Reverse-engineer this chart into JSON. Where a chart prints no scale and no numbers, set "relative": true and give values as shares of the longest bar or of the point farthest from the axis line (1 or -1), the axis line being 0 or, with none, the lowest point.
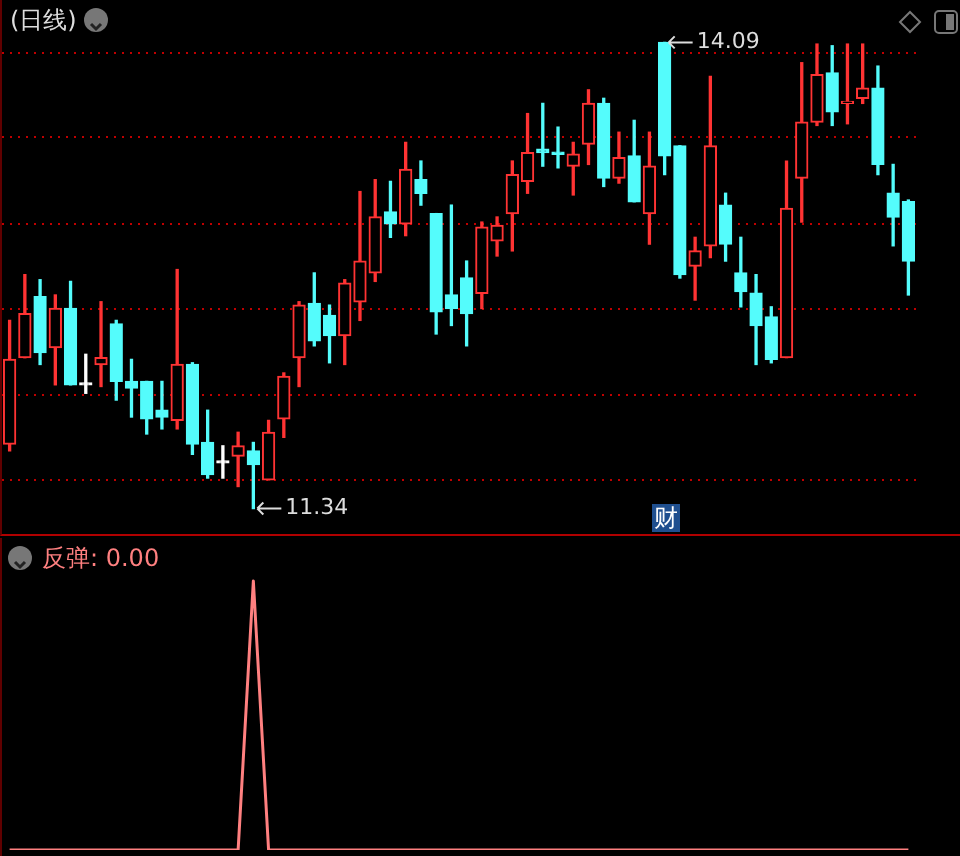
{
  "chart_data": [
    {
      "type": "candlestick",
      "title": "(日线)",
      "categories": [
        null,
        null,
        null,
        null,
        null,
        null,
        null,
        null,
        null,
        null,
        null,
        null,
        null,
        null,
        null,
        null,
        null,
        null,
        null,
        null,
        null,
        null,
        null,
        null,
        null,
        null,
        null,
        null,
        null,
        null,
        null,
        null,
        null,
        null,
        null,
        null,
        null,
        null,
        null,
        null,
        null,
        null,
        null,
        null,
        null,
        null,
        null,
        null,
        null,
        null,
        null,
        null,
        null,
        null,
        null,
        null,
        null,
        null,
        null,
        null
      ],
      "ohlc": [
        [
          11.72,
          12.45,
          11.68,
          12.22
        ],
        [
          12.23,
          12.72,
          12.23,
          12.49
        ],
        [
          12.59,
          12.69,
          12.19,
          12.26
        ],
        [
          12.29,
          12.6,
          12.07,
          12.52
        ],
        [
          12.52,
          12.68,
          12.07,
          12.07
        ],
        [
          12.07,
          12.25,
          12.02,
          12.07
        ],
        [
          12.19,
          12.56,
          12.06,
          12.23
        ],
        [
          12.43,
          12.45,
          11.98,
          12.09
        ],
        [
          12.09,
          12.22,
          11.88,
          12.05
        ],
        [
          12.09,
          12.09,
          11.78,
          11.87
        ],
        [
          11.92,
          12.09,
          11.81,
          11.88
        ],
        [
          11.86,
          12.75,
          11.81,
          12.19
        ],
        [
          12.19,
          12.2,
          11.66,
          11.72
        ],
        [
          11.73,
          11.92,
          11.52,
          11.54
        ],
        [
          11.61,
          11.71,
          11.52,
          11.61
        ],
        [
          11.65,
          11.79,
          11.47,
          11.71
        ],
        [
          11.68,
          11.73,
          11.34,
          11.6
        ],
        [
          11.51,
          11.86,
          11.51,
          11.79
        ],
        [
          11.87,
          12.14,
          11.76,
          12.12
        ],
        [
          12.23,
          12.56,
          12.06,
          12.54
        ],
        [
          12.55,
          12.73,
          12.3,
          12.33
        ],
        [
          12.48,
          12.54,
          12.2,
          12.36
        ],
        [
          12.36,
          12.69,
          12.19,
          12.67
        ],
        [
          12.56,
          13.21,
          12.45,
          12.8
        ],
        [
          12.73,
          13.28,
          12.68,
          13.06
        ],
        [
          13.09,
          13.27,
          12.94,
          13.02
        ],
        [
          13.02,
          13.5,
          12.95,
          13.34
        ],
        [
          13.28,
          13.39,
          13.13,
          13.2
        ],
        [
          13.08,
          13.08,
          12.37,
          12.5
        ],
        [
          12.6,
          13.13,
          12.42,
          12.52
        ],
        [
          12.7,
          12.8,
          12.3,
          12.49
        ],
        [
          12.61,
          13.03,
          12.52,
          13.0
        ],
        [
          12.92,
          13.06,
          12.83,
          13.01
        ],
        [
          13.08,
          13.39,
          12.86,
          13.31
        ],
        [
          13.27,
          13.67,
          13.2,
          13.44
        ],
        [
          13.46,
          13.73,
          13.36,
          13.44
        ],
        [
          13.44,
          13.59,
          13.35,
          13.43
        ],
        [
          13.36,
          13.5,
          13.19,
          13.43
        ],
        [
          13.49,
          13.81,
          13.37,
          13.73
        ],
        [
          13.73,
          13.76,
          13.24,
          13.29
        ],
        [
          13.29,
          13.56,
          13.26,
          13.41
        ],
        [
          13.42,
          13.63,
          13.15,
          13.15
        ],
        [
          13.08,
          13.56,
          12.9,
          13.36
        ],
        [
          14.09,
          14.09,
          13.31,
          13.42
        ],
        [
          13.48,
          13.48,
          12.7,
          12.72
        ],
        [
          12.77,
          12.94,
          12.57,
          12.86
        ],
        [
          12.89,
          13.89,
          12.82,
          13.48
        ],
        [
          13.13,
          13.2,
          12.8,
          12.9
        ],
        [
          12.73,
          12.94,
          12.53,
          12.62
        ],
        [
          12.61,
          12.72,
          12.19,
          12.42
        ],
        [
          12.47,
          12.53,
          12.2,
          12.22
        ],
        [
          12.23,
          13.39,
          12.23,
          13.11
        ],
        [
          13.29,
          13.97,
          13.03,
          13.62
        ],
        [
          13.62,
          14.08,
          13.6,
          13.9
        ],
        [
          13.91,
          14.07,
          13.6,
          13.68
        ],
        [
          13.73,
          14.08,
          13.61,
          13.74
        ],
        [
          13.76,
          14.08,
          13.73,
          13.82
        ],
        [
          13.82,
          13.95,
          13.31,
          13.37
        ],
        [
          13.2,
          13.37,
          12.89,
          13.06
        ],
        [
          13.15,
          13.16,
          12.6,
          12.8
        ]
      ],
      "colors": [
        "#ff3333",
        "#ff3333",
        "#54fcfc",
        "#ff3333",
        "#54fcfc",
        "#ffffff",
        "#ff3333",
        "#54fcfc",
        "#54fcfc",
        "#54fcfc",
        "#54fcfc",
        "#ff3333",
        "#54fcfc",
        "#54fcfc",
        "#ffffff",
        "#ff3333",
        "#54fcfc",
        "#ff3333",
        "#ff3333",
        "#ff3333",
        "#54fcfc",
        "#54fcfc",
        "#ff3333",
        "#ff3333",
        "#ff3333",
        "#54fcfc",
        "#ff3333",
        "#54fcfc",
        "#54fcfc",
        "#54fcfc",
        "#54fcfc",
        "#ff3333",
        "#ff3333",
        "#ff3333",
        "#ff3333",
        "#54fcfc",
        "#54fcfc",
        "#ff3333",
        "#ff3333",
        "#54fcfc",
        "#ff3333",
        "#54fcfc",
        "#ff3333",
        "#54fcfc",
        "#54fcfc",
        "#ff3333",
        "#ff3333",
        "#54fcfc",
        "#54fcfc",
        "#54fcfc",
        "#54fcfc",
        "#ff3333",
        "#ff3333",
        "#ff3333",
        "#54fcfc",
        "#ff3333",
        "#ff3333",
        "#54fcfc",
        "#54fcfc",
        "#54fcfc"
      ],
      "ylim": [
        11.19,
        14.34
      ],
      "yticks": [
        {
          "value": 11.51,
          "label": null
        },
        {
          "value": 12.01,
          "label": null
        },
        {
          "value": 12.52,
          "label": null
        },
        {
          "value": 13.02,
          "label": null
        },
        {
          "value": 13.53,
          "label": null
        },
        {
          "value": 14.03,
          "label": null
        }
      ],
      "grid": "y",
      "tick_labels": false,
      "annotations": [
        "14.09",
        "11.34",
        "财"
      ]
    },
    {
      "type": "line",
      "title": "反弹: 0.00",
      "categories": [
        null,
        null,
        null,
        null,
        null,
        null,
        null,
        null,
        null,
        null,
        null,
        null,
        null,
        null,
        null,
        null,
        null,
        null,
        null,
        null,
        null,
        null,
        null,
        null,
        null,
        null,
        null,
        null,
        null,
        null,
        null,
        null,
        null,
        null,
        null,
        null,
        null,
        null,
        null,
        null,
        null,
        null,
        null,
        null,
        null,
        null,
        null,
        null,
        null,
        null,
        null,
        null,
        null,
        null,
        null,
        null,
        null,
        null,
        null,
        null
      ],
      "series": [
        {
          "color": "#ff8080",
          "values": [
            0,
            0,
            0,
            0,
            0,
            0,
            0,
            0,
            0,
            0,
            0,
            0,
            0,
            0,
            0,
            0,
            1,
            0,
            0,
            0,
            0,
            0,
            0,
            0,
            0,
            0,
            0,
            0,
            0,
            0,
            0,
            0,
            0,
            0,
            0,
            0,
            0,
            0,
            0,
            0,
            0,
            0,
            0,
            0,
            0,
            0,
            0,
            0,
            0,
            0,
            0,
            0,
            0,
            0,
            0,
            0,
            0,
            0,
            0,
            0
          ]
        }
      ],
      "relative": true,
      "tick_labels": false
    }
  ]
}
